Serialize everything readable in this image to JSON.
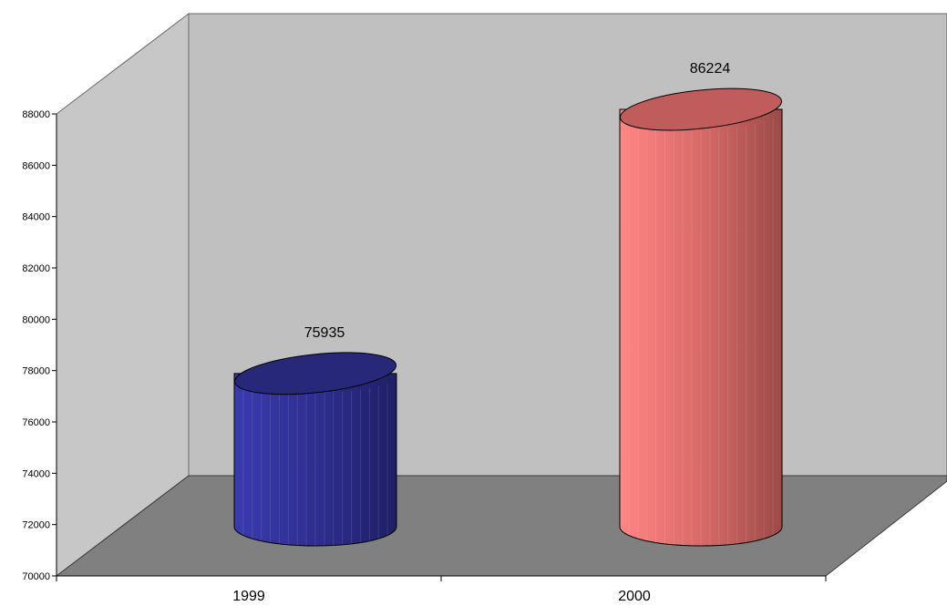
{
  "chart_data": {
    "type": "bar",
    "style": "3d-cylinder",
    "categories": [
      "1999",
      "2000"
    ],
    "values": [
      75935,
      86224
    ],
    "data_labels": [
      "75935",
      "86224"
    ],
    "colors": [
      "#2e2e9a",
      "#f27a78"
    ],
    "ylim": [
      70000,
      88000
    ],
    "yticks": [
      70000,
      72000,
      74000,
      76000,
      78000,
      80000,
      82000,
      84000,
      86000,
      88000
    ],
    "ytick_labels": [
      "70000",
      "72000",
      "74000",
      "76000",
      "78000",
      "80000",
      "82000",
      "84000",
      "86000",
      "88000"
    ],
    "title": "",
    "xlabel": "",
    "ylabel": "",
    "grid": false,
    "legend": "none"
  }
}
